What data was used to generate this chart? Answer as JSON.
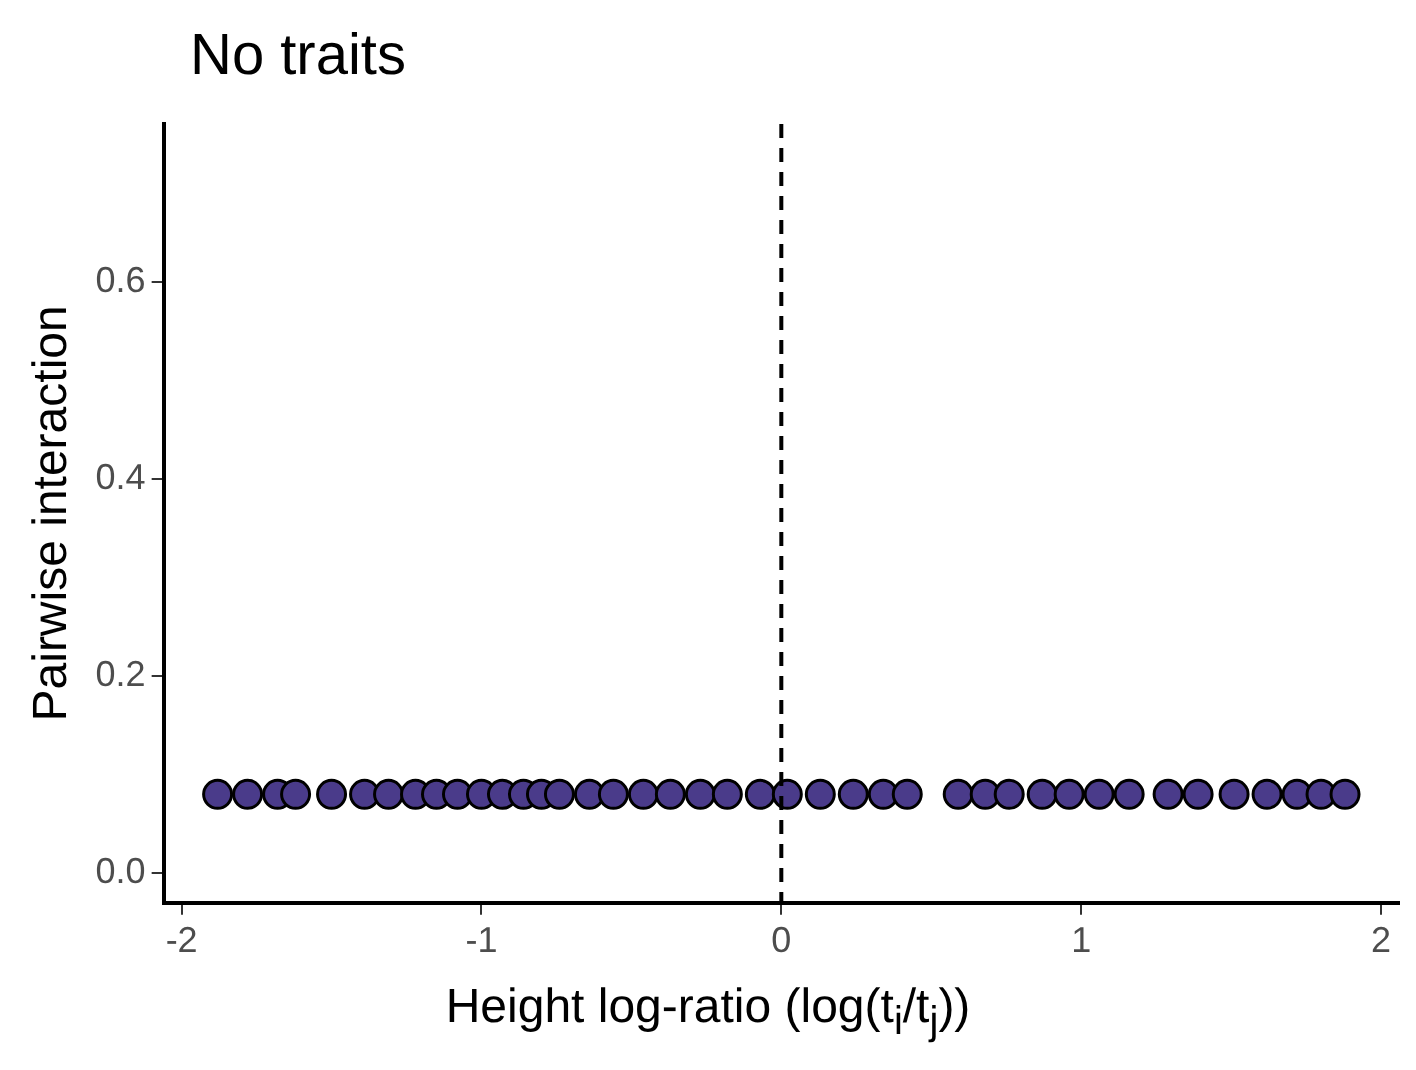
{
  "chart_data": {
    "type": "scatter",
    "title": "No traits",
    "xlabel": "Height log-ratio (log(t$_{i}$/t$_{j}$))",
    "ylabel": "Pairwise interaction",
    "x": [
      -1.88,
      -1.78,
      -1.68,
      -1.62,
      -1.5,
      -1.39,
      -1.31,
      -1.22,
      -1.15,
      -1.08,
      -1.0,
      -0.93,
      -0.86,
      -0.8,
      -0.74,
      -0.64,
      -0.56,
      -0.46,
      -0.37,
      -0.27,
      -0.18,
      -0.07,
      0.02,
      0.13,
      0.24,
      0.34,
      0.42,
      0.59,
      0.68,
      0.76,
      0.87,
      0.96,
      1.06,
      1.16,
      1.29,
      1.39,
      1.51,
      1.62,
      1.72,
      1.8,
      1.88
    ],
    "series": [
      {
        "color": "#4a3b8a",
        "values": [
          0.08,
          0.08,
          0.08,
          0.08,
          0.08,
          0.08,
          0.08,
          0.08,
          0.08,
          0.08,
          0.08,
          0.08,
          0.08,
          0.08,
          0.08,
          0.08,
          0.08,
          0.08,
          0.08,
          0.08,
          0.08,
          0.08,
          0.08,
          0.08,
          0.08,
          0.08,
          0.08,
          0.08,
          0.08,
          0.08,
          0.08,
          0.08,
          0.08,
          0.08,
          0.08,
          0.08,
          0.08,
          0.08,
          0.08,
          0.08,
          0.08
        ]
      }
    ],
    "xlim": [
      -2.06,
      2.06
    ],
    "xticks": [
      -2,
      -1,
      0,
      1,
      2
    ],
    "ylim": [
      -0.03,
      0.76
    ],
    "yticks": [
      {
        "value": 0,
        "label": "0.0"
      },
      {
        "value": 0.2,
        "label": "0.2"
      },
      {
        "value": 0.4,
        "label": "0.4"
      },
      {
        "value": 0.6,
        "label": "0.6"
      }
    ],
    "ref_lines": [
      {
        "axis": "x",
        "value": 0,
        "color": "#000000",
        "line_style": "dashed"
      }
    ],
    "grid": false,
    "legend": false,
    "marker": "circle"
  }
}
